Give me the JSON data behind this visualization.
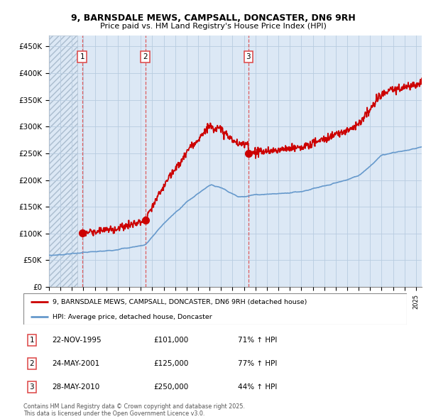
{
  "title1": "9, BARNSDALE MEWS, CAMPSALL, DONCASTER, DN6 9RH",
  "title2": "Price paid vs. HM Land Registry's House Price Index (HPI)",
  "ylabel_ticks": [
    "£0",
    "£50K",
    "£100K",
    "£150K",
    "£200K",
    "£250K",
    "£300K",
    "£350K",
    "£400K",
    "£450K"
  ],
  "ytick_values": [
    0,
    50000,
    100000,
    150000,
    200000,
    250000,
    300000,
    350000,
    400000,
    450000
  ],
  "ylim": [
    0,
    470000
  ],
  "xlim_start": 1993.0,
  "xlim_end": 2025.5,
  "hatch_end": 1995.5,
  "purchases": [
    {
      "label": 1,
      "date_num": 1995.89,
      "price": 101000
    },
    {
      "label": 2,
      "date_num": 2001.39,
      "price": 125000
    },
    {
      "label": 3,
      "date_num": 2010.39,
      "price": 250000
    }
  ],
  "property_color": "#cc0000",
  "hpi_color": "#6699cc",
  "background_color": "#dce8f5",
  "hatch_color": "#c8d8e8",
  "grid_color": "#b8cce0",
  "vline_color": "#dd4444",
  "legend_labels": [
    "9, BARNSDALE MEWS, CAMPSALL, DONCASTER, DN6 9RH (detached house)",
    "HPI: Average price, detached house, Doncaster"
  ],
  "footer": "Contains HM Land Registry data © Crown copyright and database right 2025.\nThis data is licensed under the Open Government Licence v3.0.",
  "table_rows": [
    {
      "num": 1,
      "date": "22-NOV-1995",
      "price": "£101,000",
      "pct": "71% ↑ HPI"
    },
    {
      "num": 2,
      "date": "24-MAY-2001",
      "price": "£125,000",
      "pct": "77% ↑ HPI"
    },
    {
      "num": 3,
      "date": "28-MAY-2010",
      "price": "£250,000",
      "pct": "44% ↑ HPI"
    }
  ]
}
